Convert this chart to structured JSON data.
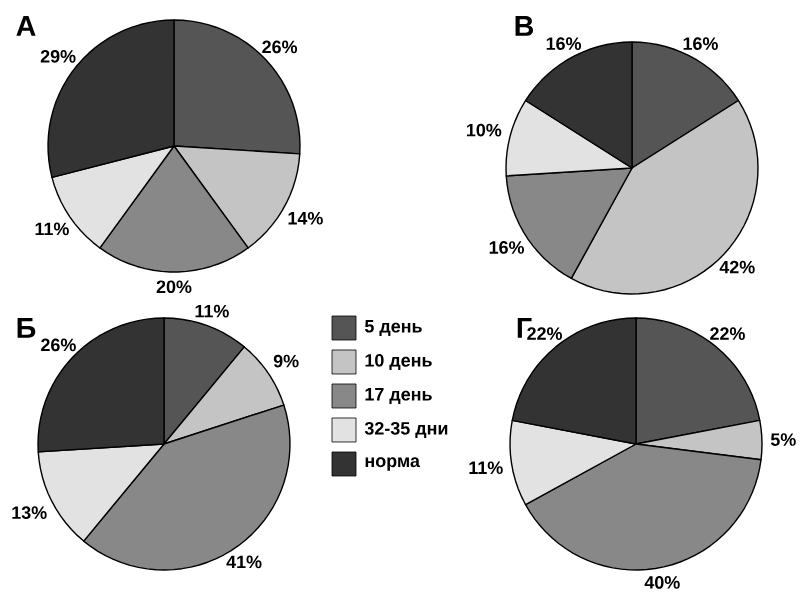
{
  "chart_data": [
    {
      "type": "pie",
      "title": "А",
      "categories": [
        "5 день",
        "10 день",
        "17 день",
        "32-35 дни",
        "норма"
      ],
      "values": [
        26,
        14,
        20,
        11,
        29
      ],
      "value_labels": [
        "26%",
        "14%",
        "20%",
        "11%",
        "29%"
      ],
      "colors": [
        "#555555",
        "#c4c4c4",
        "#888888",
        "#e2e2e2",
        "#333333"
      ],
      "legend": "bottom right"
    },
    {
      "type": "pie",
      "title": "В",
      "categories": [
        null,
        null,
        null,
        null,
        null
      ],
      "values": [
        16,
        42,
        16,
        10,
        16
      ],
      "value_labels": [
        "16%",
        "42%",
        "16%",
        "10%",
        "16%"
      ],
      "colors": [
        "#555555",
        "#c4c4c4",
        "#888888",
        "#e2e2e2",
        "#333333"
      ]
    },
    {
      "type": "pie",
      "title": "Б",
      "categories": [
        null,
        null,
        null,
        null,
        null
      ],
      "values": [
        11,
        9,
        41,
        13,
        26
      ],
      "value_labels": [
        "11%",
        "9%",
        "41%",
        "13%",
        "26%"
      ],
      "colors": [
        "#555555",
        "#c4c4c4",
        "#888888",
        "#e2e2e2",
        "#333333"
      ]
    },
    {
      "type": "pie",
      "title": "Г",
      "categories": [
        null,
        null,
        null,
        null,
        null
      ],
      "values": [
        22,
        5,
        40,
        11,
        22
      ],
      "value_labels": [
        "22%",
        "5%",
        "40%",
        "11%",
        "22%"
      ],
      "colors": [
        "#555555",
        "#c4c4c4",
        "#888888",
        "#e2e2e2",
        "#333333"
      ]
    }
  ]
}
